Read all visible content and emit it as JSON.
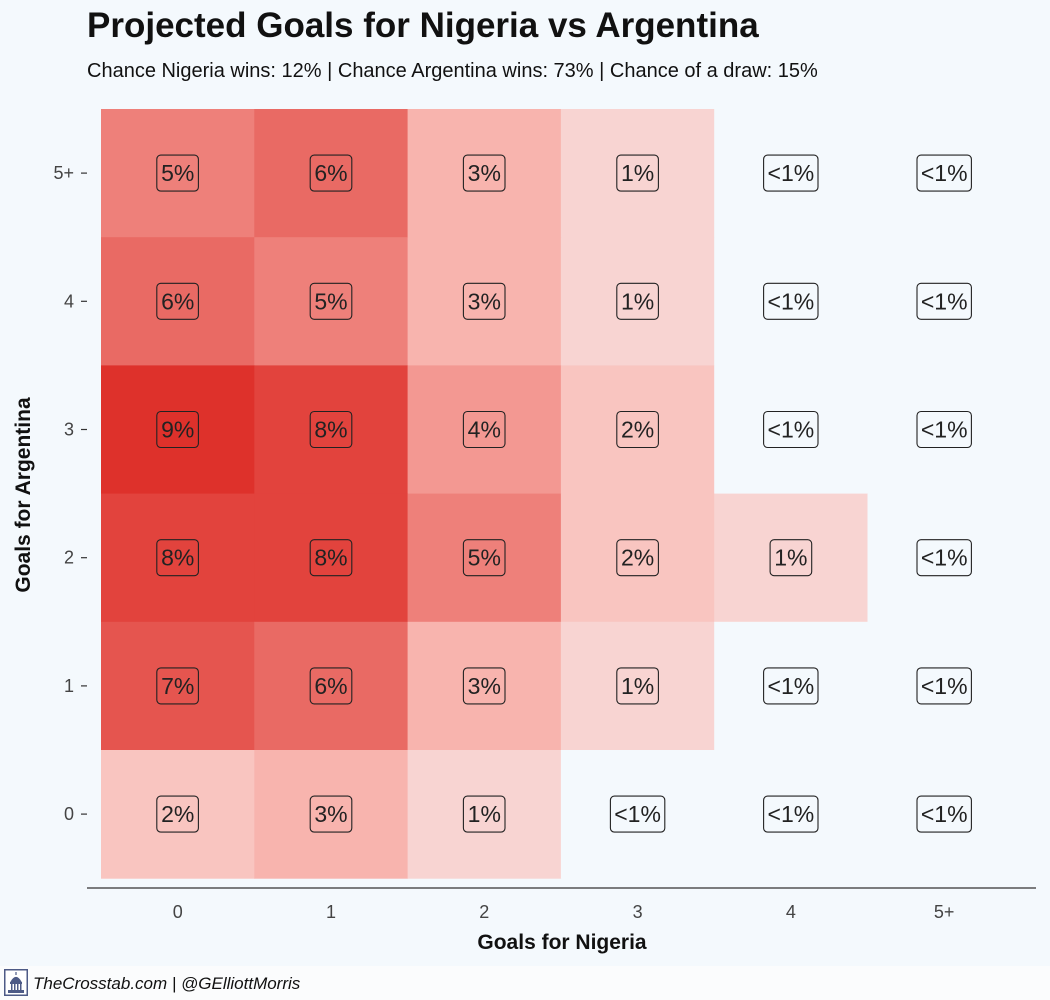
{
  "title": "Projected Goals for Nigeria vs Argentina",
  "subtitle": "Chance Nigeria wins: 12% | Chance Argentina wins: 73% | Chance of a draw: 15%",
  "footer": {
    "credit": "TheCrosstab.com | @GElliottMorris",
    "logo_icon": "capitol-dome-icon"
  },
  "chart_data": {
    "type": "heatmap",
    "xlabel": "Goals for Nigeria",
    "ylabel": "Goals for Argentina",
    "x_categories": [
      "0",
      "1",
      "2",
      "3",
      "4",
      "5+"
    ],
    "y_categories": [
      "0",
      "1",
      "2",
      "3",
      "4",
      "5+"
    ],
    "grid": false,
    "colors": {
      "low": "#f4f9fd",
      "high": "#de312b",
      "label_border": "#222222"
    },
    "cells": [
      {
        "x": "0",
        "y": "5+",
        "label": "5%",
        "value": 5
      },
      {
        "x": "1",
        "y": "5+",
        "label": "6%",
        "value": 6
      },
      {
        "x": "2",
        "y": "5+",
        "label": "3%",
        "value": 3
      },
      {
        "x": "3",
        "y": "5+",
        "label": "1%",
        "value": 1
      },
      {
        "x": "4",
        "y": "5+",
        "label": "<1%",
        "value": 0
      },
      {
        "x": "5+",
        "y": "5+",
        "label": "<1%",
        "value": 0
      },
      {
        "x": "0",
        "y": "4",
        "label": "6%",
        "value": 6
      },
      {
        "x": "1",
        "y": "4",
        "label": "5%",
        "value": 5
      },
      {
        "x": "2",
        "y": "4",
        "label": "3%",
        "value": 3
      },
      {
        "x": "3",
        "y": "4",
        "label": "1%",
        "value": 1
      },
      {
        "x": "4",
        "y": "4",
        "label": "<1%",
        "value": 0
      },
      {
        "x": "5+",
        "y": "4",
        "label": "<1%",
        "value": 0
      },
      {
        "x": "0",
        "y": "3",
        "label": "9%",
        "value": 9
      },
      {
        "x": "1",
        "y": "3",
        "label": "8%",
        "value": 8
      },
      {
        "x": "2",
        "y": "3",
        "label": "4%",
        "value": 4
      },
      {
        "x": "3",
        "y": "3",
        "label": "2%",
        "value": 2
      },
      {
        "x": "4",
        "y": "3",
        "label": "<1%",
        "value": 0
      },
      {
        "x": "5+",
        "y": "3",
        "label": "<1%",
        "value": 0
      },
      {
        "x": "0",
        "y": "2",
        "label": "8%",
        "value": 8
      },
      {
        "x": "1",
        "y": "2",
        "label": "8%",
        "value": 8
      },
      {
        "x": "2",
        "y": "2",
        "label": "5%",
        "value": 5
      },
      {
        "x": "3",
        "y": "2",
        "label": "2%",
        "value": 2
      },
      {
        "x": "4",
        "y": "2",
        "label": "1%",
        "value": 1
      },
      {
        "x": "5+",
        "y": "2",
        "label": "<1%",
        "value": 0
      },
      {
        "x": "0",
        "y": "1",
        "label": "7%",
        "value": 7
      },
      {
        "x": "1",
        "y": "1",
        "label": "6%",
        "value": 6
      },
      {
        "x": "2",
        "y": "1",
        "label": "3%",
        "value": 3
      },
      {
        "x": "3",
        "y": "1",
        "label": "1%",
        "value": 1
      },
      {
        "x": "4",
        "y": "1",
        "label": "<1%",
        "value": 0
      },
      {
        "x": "5+",
        "y": "1",
        "label": "<1%",
        "value": 0
      },
      {
        "x": "0",
        "y": "0",
        "label": "2%",
        "value": 2
      },
      {
        "x": "1",
        "y": "0",
        "label": "3%",
        "value": 3
      },
      {
        "x": "2",
        "y": "0",
        "label": "1%",
        "value": 1
      },
      {
        "x": "3",
        "y": "0",
        "label": "<1%",
        "value": 0
      },
      {
        "x": "4",
        "y": "0",
        "label": "<1%",
        "value": 0
      },
      {
        "x": "5+",
        "y": "0",
        "label": "<1%",
        "value": 0
      }
    ]
  }
}
